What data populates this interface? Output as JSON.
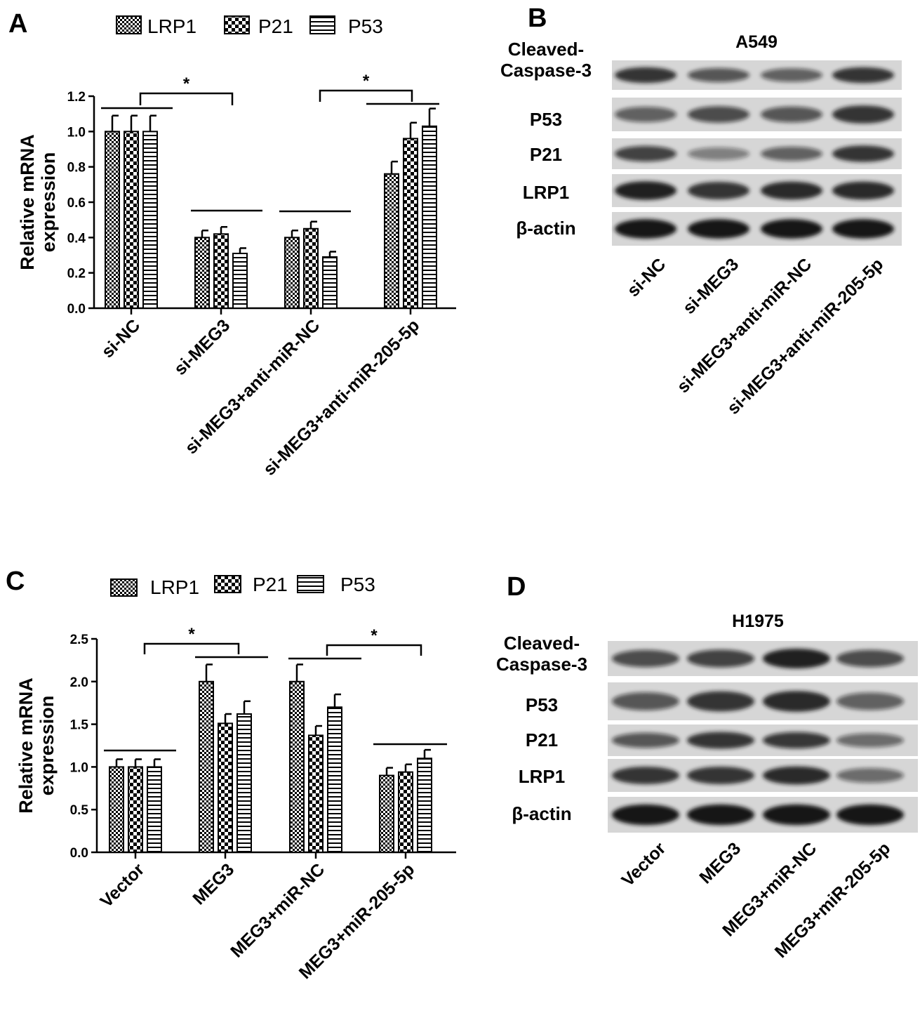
{
  "panels": {
    "A": "A",
    "B": "B",
    "C": "C",
    "D": "D"
  },
  "legend": {
    "items": [
      "LRP1",
      "P21",
      "P53"
    ],
    "patterns": [
      "dense-checker",
      "large-checker",
      "horizontal-stripes"
    ]
  },
  "chart_data": [
    {
      "type": "bar",
      "panel": "A",
      "ylabel_line1": "Relative mRNA",
      "ylabel_line2": "expression",
      "ylim": [
        0,
        1.2
      ],
      "yticks": [
        "0.0",
        "0.2",
        "0.4",
        "0.6",
        "0.8",
        "1.0",
        "1.2"
      ],
      "categories": [
        "si-NC",
        "si-MEG3",
        "si-MEG3+anti-miR-NC",
        "si-MEG3+anti-miR-205-5p"
      ],
      "series": [
        {
          "name": "LRP1",
          "values": [
            1.0,
            0.4,
            0.4,
            0.76
          ],
          "errors": [
            0.09,
            0.04,
            0.04,
            0.07
          ]
        },
        {
          "name": "P21",
          "values": [
            1.0,
            0.42,
            0.45,
            0.96
          ],
          "errors": [
            0.09,
            0.04,
            0.04,
            0.09
          ]
        },
        {
          "name": "P53",
          "values": [
            1.0,
            0.31,
            0.29,
            1.03
          ],
          "errors": [
            0.09,
            0.03,
            0.03,
            0.1
          ]
        }
      ],
      "annotations": [
        "*",
        "*"
      ]
    },
    {
      "type": "bar",
      "panel": "C",
      "ylabel_line1": "Relative mRNA",
      "ylabel_line2": "expression",
      "ylim": [
        0,
        2.5
      ],
      "yticks": [
        "0.0",
        "0.5",
        "1.0",
        "1.5",
        "2.0",
        "2.5"
      ],
      "categories": [
        "Vector",
        "MEG3",
        "MEG3+miR-NC",
        "MEG3+miR-205-5p"
      ],
      "series": [
        {
          "name": "LRP1",
          "values": [
            1.0,
            2.0,
            2.0,
            0.9
          ],
          "errors": [
            0.09,
            0.2,
            0.2,
            0.09
          ]
        },
        {
          "name": "P21",
          "values": [
            1.0,
            1.51,
            1.37,
            0.94
          ],
          "errors": [
            0.09,
            0.11,
            0.11,
            0.09
          ]
        },
        {
          "name": "P53",
          "values": [
            1.0,
            1.62,
            1.7,
            1.1
          ],
          "errors": [
            0.09,
            0.15,
            0.15,
            0.1
          ]
        }
      ],
      "annotations": [
        "*",
        "*"
      ]
    }
  ],
  "blots": [
    {
      "panel": "B",
      "title": "A549",
      "rows": [
        "Cleaved-\nCaspase-3",
        "P53",
        "P21",
        "LRP1",
        "β-actin"
      ],
      "lanes": [
        "si-NC",
        "si-MEG3",
        "si-MEG3+anti-miR-NC",
        "si-MEG3+anti-miR-205-5p"
      ]
    },
    {
      "panel": "D",
      "title": "H1975",
      "rows": [
        "Cleaved-\nCaspase-3",
        "P53",
        "P21",
        "LRP1",
        "β-actin"
      ],
      "lanes": [
        "Vector",
        "MEG3",
        "MEG3+miR-NC",
        "MEG3+miR-205-5p"
      ]
    }
  ]
}
